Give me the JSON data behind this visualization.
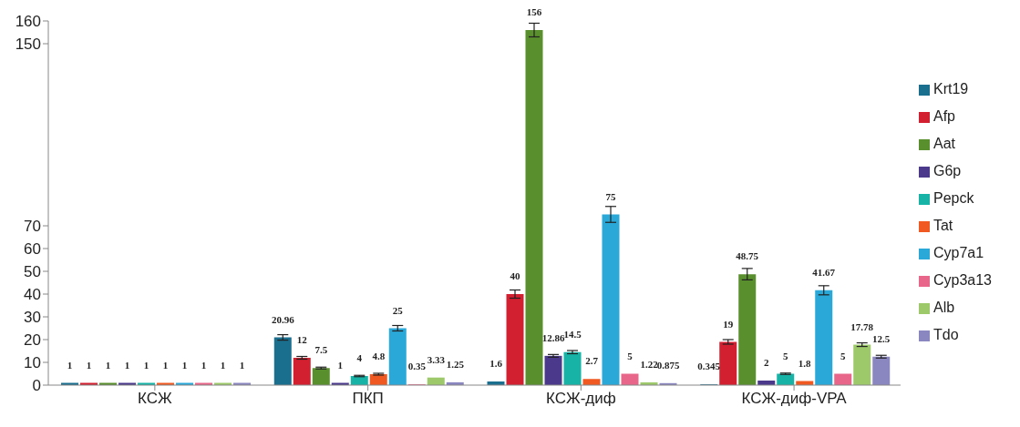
{
  "chart_data": {
    "type": "bar",
    "categories": [
      "КСЖ",
      "ПКП",
      "КСЖ-диф",
      "КСЖ-диф-VPA"
    ],
    "series": [
      {
        "name": "Krt19",
        "color": "#1a6e8e",
        "values": [
          1,
          20.96,
          1.6,
          0.345
        ],
        "errors": [
          null,
          1.2,
          null,
          null
        ]
      },
      {
        "name": "Afp",
        "color": "#d22030",
        "values": [
          1,
          12,
          40,
          19
        ],
        "errors": [
          null,
          0.6,
          1.8,
          1
        ]
      },
      {
        "name": "Aat",
        "color": "#5a8f2e",
        "values": [
          1,
          7.5,
          156,
          48.75
        ],
        "errors": [
          null,
          0.4,
          3,
          2.5
        ]
      },
      {
        "name": "G6p",
        "color": "#4b3a8c",
        "values": [
          1,
          1,
          12.86,
          2
        ],
        "errors": [
          null,
          null,
          0.6,
          null
        ]
      },
      {
        "name": "Pepck",
        "color": "#17b3a6",
        "values": [
          1,
          4,
          14.5,
          5
        ],
        "errors": [
          null,
          0.3,
          0.7,
          0.3
        ]
      },
      {
        "name": "Tat",
        "color": "#f05a22",
        "values": [
          1,
          4.8,
          2.7,
          1.8
        ],
        "errors": [
          null,
          0.4,
          null,
          null
        ]
      },
      {
        "name": "Cyp7a1",
        "color": "#2aa8d8",
        "values": [
          1,
          25,
          75,
          41.67
        ],
        "errors": [
          null,
          1.2,
          3.5,
          2
        ]
      },
      {
        "name": "Cyp3a13",
        "color": "#e8668a",
        "values": [
          1,
          0.35,
          5,
          5
        ],
        "errors": [
          null,
          null,
          null,
          null
        ]
      },
      {
        "name": "Alb",
        "color": "#9dc96a",
        "values": [
          1,
          3.33,
          1.22,
          17.78
        ],
        "errors": [
          null,
          null,
          null,
          0.8
        ]
      },
      {
        "name": "Tdo",
        "color": "#8a86c0",
        "values": [
          1,
          1.25,
          0.875,
          12.5
        ],
        "errors": [
          null,
          null,
          null,
          0.6
        ]
      }
    ],
    "ylim": [
      0,
      160
    ],
    "yticks": [
      0,
      10,
      20,
      30,
      40,
      50,
      60,
      70,
      150,
      160
    ],
    "data_labels": true,
    "legend": "right",
    "grid": false
  }
}
